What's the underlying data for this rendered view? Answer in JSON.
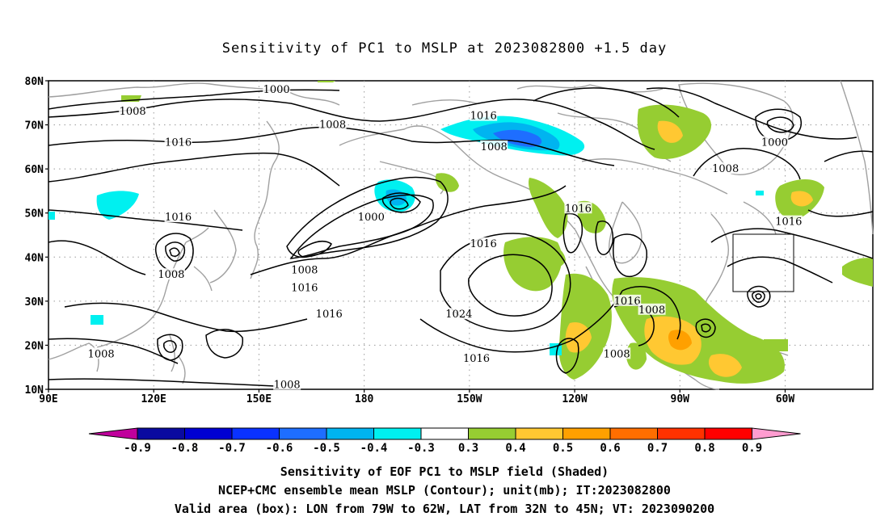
{
  "title": "Sensitivity of PC1 to MSLP at 2023082800 +1.5 day",
  "lat_labels": [
    "80N",
    "70N",
    "60N",
    "50N",
    "40N",
    "30N",
    "20N",
    "10N"
  ],
  "lon_labels": [
    "90E",
    "120E",
    "150E",
    "180",
    "150W",
    "120W",
    "90W",
    "60W"
  ],
  "isobar_labels": [
    {
      "text": "1000",
      "lon": 155,
      "lat": 78
    },
    {
      "text": "1008",
      "lon": 114,
      "lat": 73
    },
    {
      "text": "1008",
      "lon": 171,
      "lat": 70
    },
    {
      "text": "1016",
      "lon": 214,
      "lat": 72
    },
    {
      "text": "1008",
      "lon": 217,
      "lat": 65
    },
    {
      "text": "1016",
      "lon": 127,
      "lat": 66
    },
    {
      "text": "1000",
      "lon": 297,
      "lat": 66
    },
    {
      "text": "1008",
      "lon": 283,
      "lat": 60
    },
    {
      "text": "1016",
      "lon": 241,
      "lat": 51
    },
    {
      "text": "1000",
      "lon": 182,
      "lat": 49
    },
    {
      "text": "1016",
      "lon": 127,
      "lat": 49
    },
    {
      "text": "1016",
      "lon": 301,
      "lat": 48
    },
    {
      "text": "1016",
      "lon": 214,
      "lat": 43
    },
    {
      "text": "1008",
      "lon": 125,
      "lat": 36
    },
    {
      "text": "1008",
      "lon": 163,
      "lat": 37
    },
    {
      "text": "1016",
      "lon": 163,
      "lat": 33
    },
    {
      "text": "1016",
      "lon": 170,
      "lat": 27
    },
    {
      "text": "1024",
      "lon": 207,
      "lat": 27
    },
    {
      "text": "1016",
      "lon": 255,
      "lat": 30
    },
    {
      "text": "1008",
      "lon": 262,
      "lat": 28
    },
    {
      "text": "1008",
      "lon": 105,
      "lat": 18
    },
    {
      "text": "1008",
      "lon": 252,
      "lat": 18
    },
    {
      "text": "1016",
      "lon": 212,
      "lat": 17
    },
    {
      "text": "1008",
      "lon": 158,
      "lat": 11
    }
  ],
  "colorbar": {
    "labels": [
      "-0.9",
      "-0.8",
      "-0.7",
      "-0.6",
      "-0.5",
      "-0.4",
      "-0.3",
      "0.3",
      "0.4",
      "0.5",
      "0.6",
      "0.7",
      "0.8",
      "0.9"
    ],
    "colors": [
      "#0a0aa0",
      "#0000d2",
      "#0a32ff",
      "#1e6eff",
      "#00b4f0",
      "#00f0f0",
      "#ffffff",
      "#96cd32",
      "#ffc832",
      "#ffa000",
      "#ff6e00",
      "#ff3200",
      "#ff0000"
    ],
    "low_color": "#c0009c",
    "high_color": "#ff9cd0"
  },
  "captions": {
    "line1": "Sensitivity of EOF PC1 to MSLP field (Shaded)",
    "line2": "NCEP+CMC ensemble mean MSLP (Contour); unit(mb); IT:2023082800",
    "line3": "Valid area (box): LON from 79W to 62W, LAT from 32N to 45N; VT: 2023090200"
  },
  "valid_box": {
    "lon_min": -79,
    "lon_max": -62,
    "lat_min": 32,
    "lat_max": 45
  }
}
